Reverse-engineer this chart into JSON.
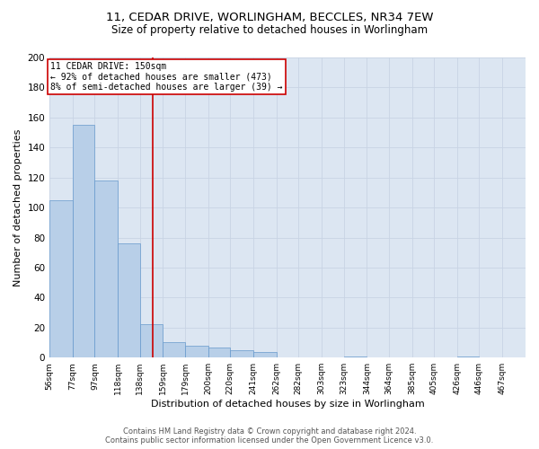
{
  "title_line1": "11, CEDAR DRIVE, WORLINGHAM, BECCLES, NR34 7EW",
  "title_line2": "Size of property relative to detached houses in Worlingham",
  "xlabel": "Distribution of detached houses by size in Worlingham",
  "ylabel": "Number of detached properties",
  "footer_line1": "Contains HM Land Registry data © Crown copyright and database right 2024.",
  "footer_line2": "Contains public sector information licensed under the Open Government Licence v3.0.",
  "bin_edges": [
    56,
    77,
    97,
    118,
    138,
    159,
    179,
    200,
    220,
    241,
    262,
    282,
    303,
    323,
    344,
    364,
    385,
    405,
    426,
    446,
    467
  ],
  "bar_heights": [
    105,
    155,
    118,
    76,
    22,
    10,
    8,
    7,
    5,
    4,
    0,
    0,
    0,
    1,
    0,
    0,
    0,
    0,
    1,
    0
  ],
  "bar_color": "#b8cfe8",
  "bar_edge_color": "#6699cc",
  "grid_color": "#c8d4e4",
  "background_color": "#dce6f2",
  "property_size": 150,
  "red_line_color": "#cc0000",
  "annotation_text_line1": "11 CEDAR DRIVE: 150sqm",
  "annotation_text_line2": "← 92% of detached houses are smaller (473)",
  "annotation_text_line3": "8% of semi-detached houses are larger (39) →",
  "annotation_box_facecolor": "#ffffff",
  "annotation_box_edgecolor": "#cc0000",
  "ylim": [
    0,
    200
  ],
  "yticks": [
    0,
    20,
    40,
    60,
    80,
    100,
    120,
    140,
    160,
    180,
    200
  ],
  "title1_fontsize": 9.5,
  "title2_fontsize": 8.5,
  "xlabel_fontsize": 8,
  "ylabel_fontsize": 8,
  "xtick_fontsize": 6.5,
  "ytick_fontsize": 7.5,
  "footer_fontsize": 6,
  "annot_fontsize": 7
}
